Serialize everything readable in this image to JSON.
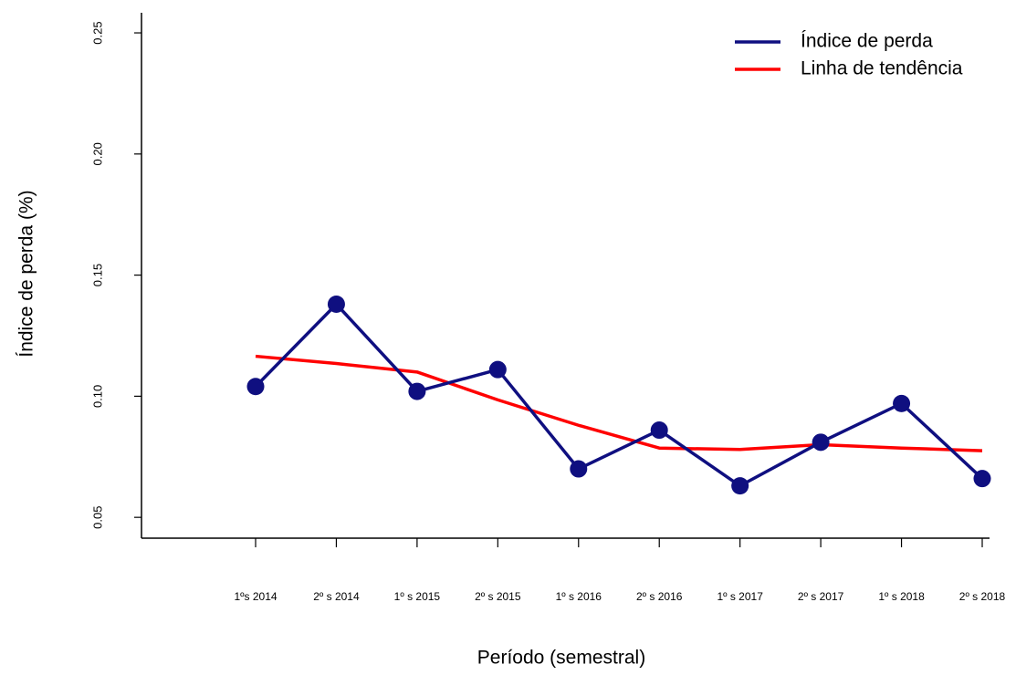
{
  "chart_data": {
    "type": "line",
    "x_label": "Período (semestral)",
    "y_label": "Índice de perda (%)",
    "categories": [
      "1ºs 2014",
      "2º s 2014",
      "1º s 2015",
      "2º s 2015",
      "1º s 2016",
      "2º s 2016",
      "1º s 2017",
      "2º s 2017",
      "1º s 2018",
      "2º s 2018"
    ],
    "series": [
      {
        "name": "Índice de perda",
        "color": "#0f0f80",
        "markers": true,
        "values": [
          0.104,
          0.138,
          0.102,
          0.111,
          0.07,
          0.086,
          0.063,
          0.081,
          0.097,
          0.066
        ]
      },
      {
        "name": "Linha de tendência",
        "color": "#ff0000",
        "markers": false,
        "values": [
          0.1165,
          0.1135,
          0.11,
          0.0985,
          0.088,
          0.0786,
          0.078,
          0.08,
          0.0786,
          0.0775
        ]
      }
    ],
    "ylim": [
      0.0414,
      0.2583
    ],
    "yticks": [
      0.05,
      {
        "value": 0.1,
        "label": "0.10"
      },
      0.15,
      {
        "value": 0.2,
        "label": "0.20"
      },
      0.25
    ],
    "legend": "top-right"
  }
}
